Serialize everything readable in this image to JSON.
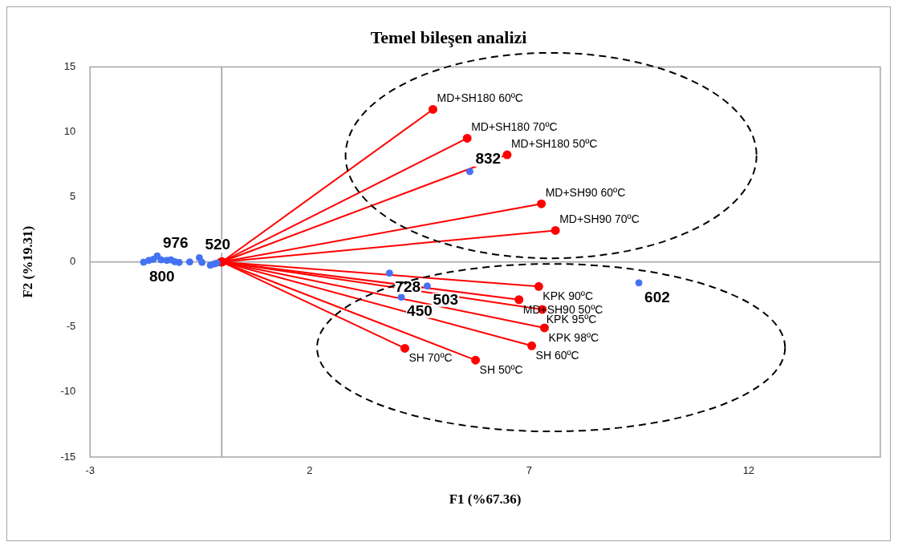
{
  "chart_data": {
    "type": "scatter",
    "title": "Temel bileşen analizi",
    "xlabel": "F1 (%67.36)",
    "ylabel": "F2 (%19.31)",
    "xlim": [
      -3,
      15
    ],
    "xticks": [
      -3,
      2,
      7,
      12
    ],
    "ylim": [
      -15,
      15
    ],
    "yticks": [
      -15,
      -10,
      -5,
      0,
      5,
      10,
      15
    ],
    "grid": false,
    "legend": false,
    "marker": "circle",
    "ref_lines": [
      {
        "axis": "x",
        "value": 0,
        "color": "#9a9a9a"
      },
      {
        "axis": "y",
        "value": 0,
        "color": "#a6a6a6"
      }
    ],
    "annotations": [
      {
        "text": "832",
        "x": 5.65,
        "y": 6.95
      },
      {
        "text": "728",
        "x": 3.82,
        "y": -0.86
      },
      {
        "text": "503",
        "x": 4.68,
        "y": -1.85
      },
      {
        "text": "450",
        "x": 4.09,
        "y": -2.71
      },
      {
        "text": "602",
        "x": 9.5,
        "y": -1.61
      },
      {
        "text": "800",
        "x": -1.78,
        "y": -0.02
      },
      {
        "text": "976",
        "x": -1.47,
        "y": 0.46
      },
      {
        "text": "520",
        "x": -0.51,
        "y": 0.32
      },
      {
        "text": "MD+SH180 60ºC",
        "x": 4.81,
        "y": 11.73
      },
      {
        "text": "MD+SH180 70ºC",
        "x": 5.59,
        "y": 9.51
      },
      {
        "text": "MD+SH180 50ºC",
        "x": 6.5,
        "y": 8.24
      },
      {
        "text": "MD+SH90 60ºC",
        "x": 7.28,
        "y": 4.47
      },
      {
        "text": "MD+SH90 70ºC",
        "x": 7.6,
        "y": 2.42
      },
      {
        "text": "KPK 90ºC",
        "x": 7.22,
        "y": -1.89
      },
      {
        "text": "MD+SH90 50ºC",
        "x": 6.77,
        "y": -2.9
      },
      {
        "text": "KPK 95ºC",
        "x": 7.3,
        "y": -3.65
      },
      {
        "text": "KPK 98ºC",
        "x": 7.35,
        "y": -5.07
      },
      {
        "text": "SH 60ºC",
        "x": 7.06,
        "y": -6.45
      },
      {
        "text": "SH 70ºC",
        "x": 4.17,
        "y": -6.64
      },
      {
        "text": "SH 50ºC",
        "x": 5.78,
        "y": -7.55
      }
    ],
    "series": [
      {
        "type": "scatter",
        "color": "#4472f4",
        "x": [
          5.65,
          3.82,
          4.68,
          4.09,
          9.5,
          -1.78,
          -1.66,
          -1.56,
          -1.47,
          -1.38,
          -1.25,
          -1.16,
          -1.07,
          -0.97,
          -0.73,
          -0.51,
          -0.45,
          -0.26,
          -0.17,
          -0.11
        ],
        "values": [
          6.95,
          -0.86,
          -1.85,
          -2.71,
          -1.61,
          -0.02,
          0.12,
          0.2,
          0.46,
          0.16,
          0.12,
          0.16,
          0.02,
          -0.04,
          0,
          0.32,
          -0.04,
          -0.25,
          -0.15,
          -0.09
        ]
      },
      {
        "type": "line",
        "color": "#ff0000",
        "x": [
          0,
          4.81
        ],
        "values": [
          0,
          11.73
        ]
      },
      {
        "type": "line",
        "color": "#ff0000",
        "x": [
          0,
          5.59
        ],
        "values": [
          0,
          9.51
        ]
      },
      {
        "type": "line",
        "color": "#ff0000",
        "x": [
          0,
          6.5
        ],
        "values": [
          0,
          8.24
        ]
      },
      {
        "type": "line",
        "color": "#ff0000",
        "x": [
          0,
          7.28
        ],
        "values": [
          0,
          4.47
        ]
      },
      {
        "type": "line",
        "color": "#ff0000",
        "x": [
          0,
          7.6
        ],
        "values": [
          0,
          2.42
        ]
      },
      {
        "type": "line",
        "color": "#ff0000",
        "x": [
          0,
          7.22
        ],
        "values": [
          0,
          -1.89
        ]
      },
      {
        "type": "line",
        "color": "#ff0000",
        "x": [
          0,
          6.77
        ],
        "values": [
          0,
          -2.9
        ]
      },
      {
        "type": "line",
        "color": "#ff0000",
        "x": [
          0,
          7.3
        ],
        "values": [
          0,
          -3.65
        ]
      },
      {
        "type": "line",
        "color": "#ff0000",
        "x": [
          0,
          7.35
        ],
        "values": [
          0,
          -5.07
        ]
      },
      {
        "type": "line",
        "color": "#ff0000",
        "x": [
          0,
          7.06
        ],
        "values": [
          0,
          -6.45
        ]
      },
      {
        "type": "line",
        "color": "#ff0000",
        "x": [
          0,
          4.17
        ],
        "values": [
          0,
          -6.64
        ]
      },
      {
        "type": "line",
        "color": "#ff0000",
        "x": [
          0,
          5.78
        ],
        "values": [
          0,
          -7.55
        ]
      }
    ]
  }
}
